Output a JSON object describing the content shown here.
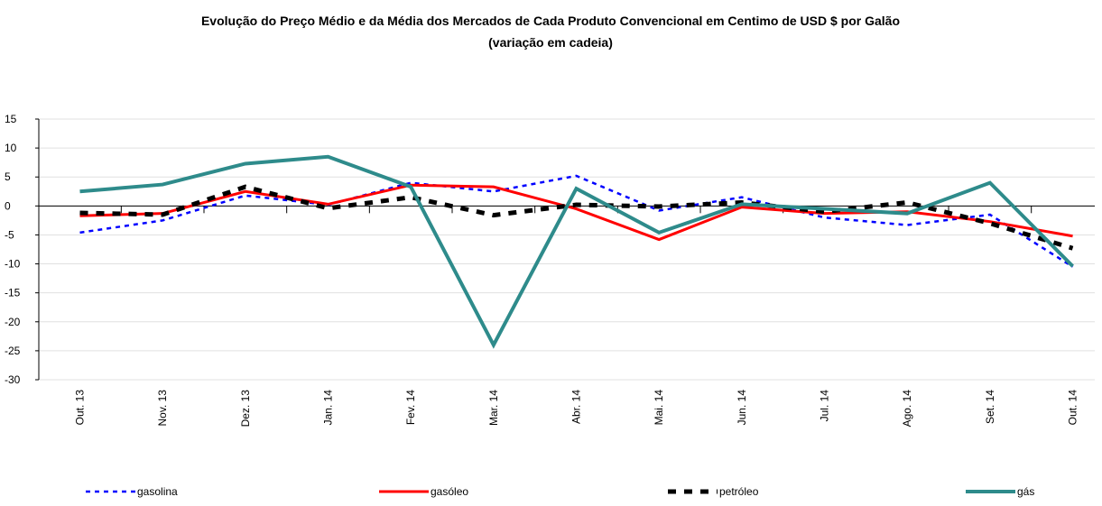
{
  "chart_data": {
    "type": "line",
    "title": "Evolução do Preço Médio e da Média dos Mercados de Cada Produto Convencional em Centimo de USD $ por Galão",
    "subtitle": "(variação em cadeia)",
    "categories": [
      "Out. 13",
      "Nov. 13",
      "Dez. 13",
      "Jan. 14",
      "Fev. 14",
      "Mar. 14",
      "Abr. 14",
      "Mai. 14",
      "Jun. 14",
      "Jul. 14",
      "Ago. 14",
      "Set. 14",
      "Out. 14"
    ],
    "series": [
      {
        "name": "gasolina",
        "color": "#0000ff",
        "values": [
          -4.6,
          -2.5,
          1.8,
          0.2,
          4.0,
          2.5,
          5.2,
          -0.8,
          1.5,
          -2.0,
          -3.3,
          -1.5,
          -10.5
        ]
      },
      {
        "name": "gasóleo",
        "color": "#ff0000",
        "values": [
          -1.7,
          -1.3,
          2.5,
          0.3,
          3.6,
          3.3,
          -0.5,
          -5.8,
          -0.2,
          -1.3,
          -1.0,
          -2.7,
          -5.2
        ]
      },
      {
        "name": "petróleo",
        "color": "#000000",
        "values": [
          -1.2,
          -1.5,
          3.3,
          -0.4,
          1.5,
          -1.6,
          0.2,
          -0.1,
          0.6,
          -1.0,
          0.6,
          -3.0,
          -7.3
        ]
      },
      {
        "name": "gás",
        "color": "#2e8b8b",
        "values": [
          2.5,
          3.7,
          7.3,
          8.5,
          3.3,
          -24,
          3.0,
          -4.6,
          0.3,
          -0.5,
          -1.3,
          4.0,
          -10.4
        ]
      }
    ],
    "ylim": [
      -30,
      15
    ],
    "yticks": [
      -30,
      -25,
      -20,
      -15,
      -10,
      -5,
      0,
      5,
      10,
      15
    ],
    "grid": true,
    "legend": "bottom"
  }
}
